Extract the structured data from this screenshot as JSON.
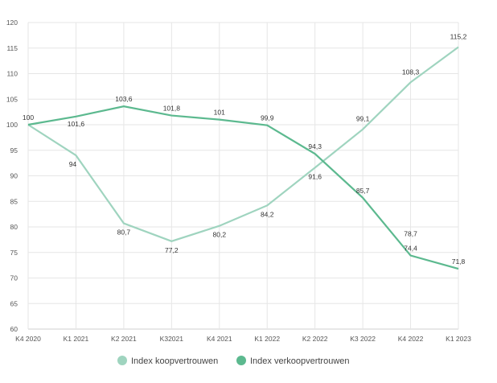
{
  "chart_data": {
    "type": "line",
    "categories": [
      "K4 2020",
      "K1 2021",
      "K2 2021",
      "K32021",
      "K4 2021",
      "K1 2022",
      "K2 2022",
      "K3 2022",
      "K4 2022",
      "K1 2023"
    ],
    "ylim": [
      60,
      120
    ],
    "yticks": [
      "60",
      "65",
      "70",
      "75",
      "80",
      "85",
      "90",
      "95",
      "100",
      "105",
      "110",
      "115",
      "120"
    ],
    "grid": true,
    "legend_position": "bottom",
    "series": [
      {
        "name": "Index koopvertrouwen",
        "color": "#9fd4bf",
        "values": [
          100,
          94,
          80.7,
          77.2,
          80.2,
          84.2,
          91.6,
          99.1,
          108.3,
          115.2
        ],
        "labels": [
          "",
          "94",
          "80,7",
          "77,2",
          "80,2",
          "84,2",
          "91,6",
          "99,1",
          "108,3",
          "115,2"
        ]
      },
      {
        "name": "Index verkoopvertrouwen",
        "color": "#5cb98f",
        "values": [
          100,
          101.6,
          103.6,
          101.8,
          101,
          99.9,
          94.3,
          85.7,
          74.4,
          71.8
        ],
        "labels": [
          "100",
          "101,6",
          "103,6",
          "101,8",
          "101",
          "99,9",
          "94,3",
          "85,7",
          "74,4",
          "71,8"
        ]
      }
    ],
    "annotations": [
      "78,7"
    ]
  }
}
